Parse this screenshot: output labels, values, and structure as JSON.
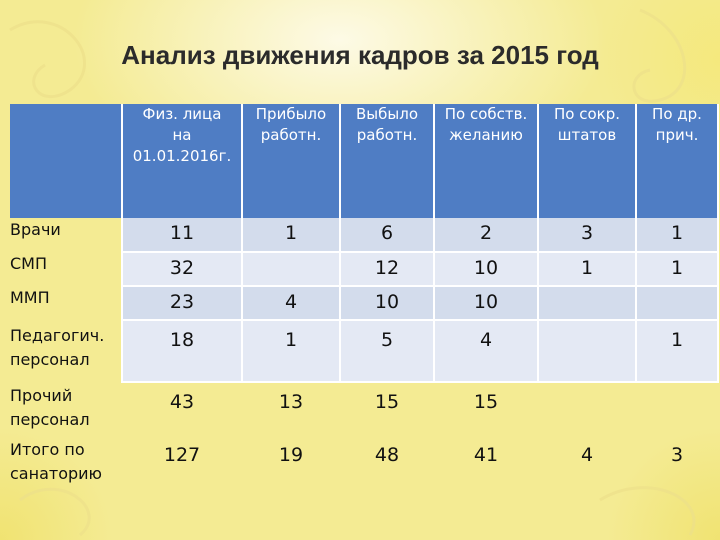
{
  "title": "Анализ движения кадров за 2015 год",
  "columns": [
    {
      "line1": "Физ. лица",
      "line2": "на",
      "line3": "01.01.2016г."
    },
    {
      "line1": "Прибыло",
      "line2": "работн.",
      "line3": ""
    },
    {
      "line1": "Выбыло",
      "line2": "работн.",
      "line3": ""
    },
    {
      "line1": "По собств.",
      "line2": "желанию",
      "line3": ""
    },
    {
      "line1": "По сокр.",
      "line2": "штатов",
      "line3": ""
    },
    {
      "line1": "По др.",
      "line2": "прич.",
      "line3": ""
    }
  ],
  "rows": [
    {
      "label1": "Врачи",
      "label2": "",
      "values": [
        "11",
        "1",
        "6",
        "2",
        "3",
        "1"
      ]
    },
    {
      "label1": "СМП",
      "label2": "",
      "values": [
        "32",
        "",
        "12",
        "10",
        "1",
        "1"
      ]
    },
    {
      "label1": "ММП",
      "label2": "",
      "values": [
        "23",
        "4",
        "10",
        "10",
        "",
        ""
      ]
    },
    {
      "label1": "Педагогич.",
      "label2": "персонал",
      "values": [
        "18",
        "1",
        "5",
        "4",
        "",
        "1"
      ]
    },
    {
      "label1": "Прочий",
      "label2": "персонал",
      "values": [
        "43",
        "13",
        "15",
        "15",
        "",
        ""
      ]
    },
    {
      "label1": "Итого по",
      "label2": "санаторию",
      "values": [
        "127",
        "19",
        "48",
        "41",
        "4",
        "3"
      ]
    }
  ],
  "colors": {
    "header": "#4f7dc4",
    "band": "#d3dcec",
    "band_alt": "#e4e9f4"
  }
}
